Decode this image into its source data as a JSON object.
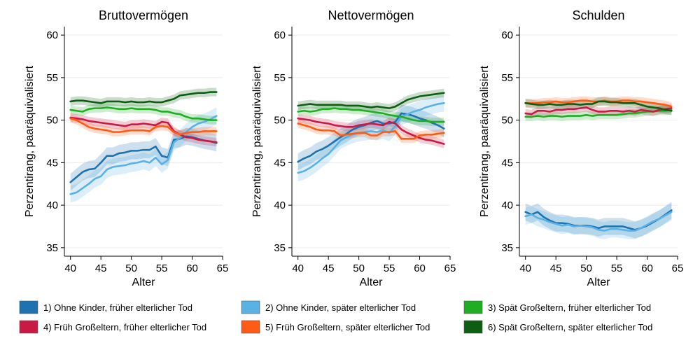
{
  "chart_data": [
    {
      "type": "line",
      "title": "Bruttovermögen",
      "xlabel": "Alter",
      "ylabel": "Perzentirang, paaräquivalisiert",
      "xlim": [
        39,
        65
      ],
      "ylim": [
        34,
        61
      ],
      "x_ticks": [
        40,
        45,
        50,
        55,
        60,
        65
      ],
      "y_ticks": [
        35,
        40,
        45,
        50,
        55,
        60
      ],
      "grid": true,
      "x": [
        40,
        41,
        42,
        43,
        44,
        45,
        46,
        47,
        48,
        49,
        50,
        51,
        52,
        53,
        54,
        55,
        56,
        57,
        58,
        59,
        60,
        61,
        62,
        63,
        64
      ],
      "series": [
        {
          "name": "1) Ohne Kinder, früher elterlicher Tod",
          "color": "#1f72b0",
          "band": 1.0,
          "values": [
            42.7,
            43.3,
            43.9,
            44.2,
            44.3,
            45.0,
            45.8,
            45.8,
            46.1,
            46.2,
            46.4,
            46.4,
            46.5,
            46.5,
            46.9,
            45.8,
            45.6,
            47.7,
            47.8,
            48.1,
            48.0,
            47.8,
            47.6,
            47.5,
            47.3
          ]
        },
        {
          "name": "2) Ohne Kinder, später elterlicher Tod",
          "color": "#5ab1e4",
          "band": 1.0,
          "values": [
            41.3,
            41.5,
            42.0,
            42.5,
            43.1,
            43.4,
            44.2,
            44.5,
            44.6,
            44.7,
            44.9,
            45.0,
            45.2,
            45.0,
            45.6,
            44.8,
            45.3,
            47.4,
            47.9,
            48.6,
            49.2,
            49.6,
            49.8,
            50.1,
            50.5
          ]
        },
        {
          "name": "3) Spät Großeltern, früher elterlicher Tod",
          "color": "#1fae23",
          "band": 0.5,
          "values": [
            51.2,
            51.1,
            51.0,
            51.3,
            51.4,
            51.4,
            51.5,
            51.4,
            51.3,
            51.3,
            51.4,
            51.3,
            51.3,
            51.3,
            51.2,
            51.0,
            51.0,
            50.8,
            50.7,
            50.4,
            50.2,
            50.2,
            50.1,
            50.0,
            50.0
          ]
        },
        {
          "name": "4) Früh Großeltern, früher elterlicher Tod",
          "color": "#c91a45",
          "band": 0.5,
          "values": [
            50.3,
            50.2,
            50.1,
            49.9,
            49.8,
            49.7,
            49.6,
            49.5,
            49.4,
            49.3,
            49.5,
            49.5,
            49.6,
            49.5,
            49.4,
            49.8,
            49.7,
            48.7,
            48.3,
            48.0,
            47.9,
            47.7,
            47.6,
            47.5,
            47.4
          ]
        },
        {
          "name": "5) Früh Großeltern, später elterlicher Tod",
          "color": "#ff5a16",
          "band": 0.5,
          "values": [
            50.2,
            50.0,
            49.6,
            49.2,
            49.0,
            48.9,
            48.8,
            48.6,
            48.6,
            48.7,
            48.8,
            48.8,
            48.8,
            48.7,
            49.2,
            49.3,
            49.2,
            48.6,
            48.3,
            48.5,
            48.6,
            48.6,
            48.7,
            48.7,
            48.7
          ]
        },
        {
          "name": "6) Spät Großeltern, später elterlicher Tod",
          "color": "#0d5e13",
          "band": 0.5,
          "values": [
            52.2,
            52.3,
            52.3,
            52.2,
            52.1,
            52.0,
            52.2,
            52.2,
            52.2,
            52.1,
            52.2,
            52.1,
            52.1,
            52.2,
            52.1,
            52.1,
            52.3,
            52.5,
            52.9,
            53.0,
            53.1,
            53.2,
            53.2,
            53.3,
            53.3
          ]
        }
      ]
    },
    {
      "type": "line",
      "title": "Nettovermögen",
      "xlabel": "Alter",
      "ylabel": "Perzentirang, paaräquivalisiert",
      "xlim": [
        39,
        65
      ],
      "ylim": [
        34,
        61
      ],
      "x_ticks": [
        40,
        45,
        50,
        55,
        60,
        65
      ],
      "y_ticks": [
        35,
        40,
        45,
        50,
        55,
        60
      ],
      "grid": true,
      "x": [
        40,
        41,
        42,
        43,
        44,
        45,
        46,
        47,
        48,
        49,
        50,
        51,
        52,
        53,
        54,
        55,
        56,
        57,
        58,
        59,
        60,
        61,
        62,
        63,
        64
      ],
      "series": [
        {
          "name": "1) Ohne Kinder, früher elterlicher Tod",
          "color": "#1f72b0",
          "band": 1.0,
          "values": [
            45.1,
            45.5,
            45.8,
            46.3,
            46.6,
            47.0,
            47.5,
            48.0,
            48.4,
            48.9,
            49.2,
            49.4,
            49.7,
            49.9,
            49.6,
            49.6,
            49.8,
            50.8,
            50.7,
            50.5,
            50.2,
            50.0,
            49.7,
            49.4,
            49.0
          ]
        },
        {
          "name": "2) Ohne Kinder, später elterlicher Tod",
          "color": "#5ab1e4",
          "band": 1.0,
          "values": [
            43.8,
            44.0,
            44.4,
            44.9,
            45.5,
            46.0,
            46.8,
            47.6,
            48.0,
            48.3,
            48.5,
            48.6,
            48.7,
            48.6,
            48.8,
            48.5,
            49.3,
            50.4,
            50.7,
            51.0,
            51.2,
            51.5,
            51.7,
            51.9,
            52.0
          ]
        },
        {
          "name": "3) Spät Großeltern, früher elterlicher Tod",
          "color": "#1fae23",
          "band": 0.5,
          "values": [
            51.0,
            51.1,
            51.0,
            51.1,
            51.3,
            51.3,
            51.4,
            51.3,
            51.3,
            51.2,
            51.2,
            51.1,
            51.0,
            50.9,
            50.8,
            50.6,
            50.5,
            50.4,
            50.2,
            50.0,
            49.9,
            49.9,
            49.8,
            49.8,
            49.8
          ]
        },
        {
          "name": "4) Früh Großeltern, früher elterlicher Tod",
          "color": "#c91a45",
          "band": 0.5,
          "values": [
            50.2,
            50.1,
            50.0,
            49.8,
            49.7,
            49.6,
            49.4,
            49.3,
            49.2,
            49.2,
            49.4,
            49.5,
            49.6,
            49.5,
            49.4,
            49.8,
            49.6,
            48.9,
            48.5,
            48.2,
            47.9,
            47.7,
            47.6,
            47.4,
            47.2
          ]
        },
        {
          "name": "5) Früh Großeltern, später elterlicher Tod",
          "color": "#ff5a16",
          "band": 0.5,
          "values": [
            49.6,
            49.4,
            49.2,
            48.9,
            48.8,
            48.8,
            48.7,
            48.2,
            48.3,
            48.4,
            48.5,
            48.5,
            48.2,
            48.2,
            48.6,
            48.6,
            48.7,
            47.8,
            47.8,
            47.8,
            48.2,
            48.3,
            48.3,
            48.4,
            48.5
          ]
        },
        {
          "name": "6) Spät Großeltern, später elterlicher Tod",
          "color": "#0d5e13",
          "band": 0.5,
          "values": [
            51.7,
            51.8,
            51.9,
            51.8,
            51.8,
            51.8,
            51.8,
            51.8,
            51.7,
            51.7,
            51.7,
            51.6,
            51.5,
            51.6,
            51.5,
            51.4,
            51.6,
            52.0,
            52.4,
            52.6,
            52.8,
            52.9,
            53.0,
            53.1,
            53.2
          ]
        }
      ]
    },
    {
      "type": "line",
      "title": "Schulden",
      "xlabel": "Alter",
      "ylabel": "Perzentirang, paaräquivalisiert",
      "xlim": [
        39,
        65
      ],
      "ylim": [
        34,
        61
      ],
      "x_ticks": [
        40,
        45,
        50,
        55,
        60,
        65
      ],
      "y_ticks": [
        35,
        40,
        45,
        50,
        55,
        60
      ],
      "grid": true,
      "x": [
        40,
        41,
        42,
        43,
        44,
        45,
        46,
        47,
        48,
        49,
        50,
        51,
        52,
        53,
        54,
        55,
        56,
        57,
        58,
        59,
        60,
        61,
        62,
        63,
        64
      ],
      "series": [
        {
          "name": "1) Ohne Kinder, früher elterlicher Tod",
          "color": "#1f72b0",
          "band": 1.0,
          "values": [
            39.2,
            38.9,
            39.2,
            38.6,
            38.2,
            37.9,
            37.9,
            37.8,
            37.6,
            37.6,
            37.6,
            37.5,
            37.3,
            37.5,
            37.5,
            37.5,
            37.5,
            37.3,
            37.1,
            37.3,
            37.6,
            38.0,
            38.4,
            38.9,
            39.4
          ]
        },
        {
          "name": "2) Ohne Kinder, später elterlicher Tod",
          "color": "#5ab1e4",
          "band": 1.0,
          "values": [
            38.7,
            38.9,
            38.5,
            38.3,
            38.0,
            37.8,
            37.6,
            37.7,
            37.5,
            37.6,
            37.5,
            37.4,
            37.1,
            37.0,
            37.2,
            37.2,
            37.1,
            37.0,
            37.0,
            37.3,
            37.7,
            38.1,
            38.4,
            38.8,
            39.2
          ]
        },
        {
          "name": "3) Spät Großeltern, früher elterlicher Tod",
          "color": "#1fae23",
          "band": 0.5,
          "values": [
            50.4,
            50.4,
            50.5,
            50.4,
            50.5,
            50.5,
            50.4,
            50.5,
            50.5,
            50.5,
            50.6,
            50.5,
            50.6,
            50.6,
            50.6,
            50.6,
            50.7,
            50.8,
            50.8,
            50.9,
            51.0,
            51.0,
            51.1,
            51.1,
            51.2
          ]
        },
        {
          "name": "4) Früh Großeltern, früher elterlicher Tod",
          "color": "#c91a45",
          "band": 0.5,
          "values": [
            50.8,
            50.7,
            51.1,
            51.1,
            51.0,
            51.2,
            51.2,
            51.3,
            51.3,
            51.4,
            51.5,
            51.2,
            51.0,
            51.0,
            51.1,
            51.1,
            51.0,
            51.1,
            51.0,
            51.2,
            51.1,
            51.0,
            51.2,
            51.3,
            51.4
          ]
        },
        {
          "name": "5) Früh Großeltern, später elterlicher Tod",
          "color": "#ff5a16",
          "band": 0.5,
          "values": [
            52.0,
            52.0,
            52.0,
            52.1,
            52.1,
            52.2,
            52.1,
            52.1,
            52.2,
            52.3,
            52.3,
            52.2,
            52.2,
            52.3,
            52.2,
            52.2,
            52.3,
            52.3,
            52.2,
            52.2,
            52.1,
            52.0,
            51.9,
            51.8,
            51.6
          ]
        },
        {
          "name": "6) Spät Großeltern, später elterlicher Tod",
          "color": "#0d5e13",
          "band": 0.5,
          "values": [
            52.0,
            51.9,
            51.8,
            51.8,
            51.9,
            51.8,
            51.8,
            51.9,
            51.9,
            51.8,
            51.9,
            51.9,
            52.2,
            52.2,
            52.1,
            52.1,
            52.0,
            52.0,
            52.0,
            51.8,
            51.6,
            51.5,
            51.4,
            51.2,
            51.1
          ]
        }
      ]
    }
  ],
  "legend": [
    {
      "label": "1) Ohne Kinder, früher elterlicher Tod",
      "color": "#1f72b0"
    },
    {
      "label": "2) Ohne Kinder, später elterlicher Tod",
      "color": "#5ab1e4"
    },
    {
      "label": "3) Spät Großeltern, früher elterlicher Tod",
      "color": "#1fae23"
    },
    {
      "label": "4) Früh Großeltern, früher elterlicher Tod",
      "color": "#c91a45"
    },
    {
      "label": "5) Früh Großeltern, später elterlicher Tod",
      "color": "#ff5a16"
    },
    {
      "label": "6) Spät Großeltern, später elterlicher Tod",
      "color": "#0d5e13"
    }
  ]
}
